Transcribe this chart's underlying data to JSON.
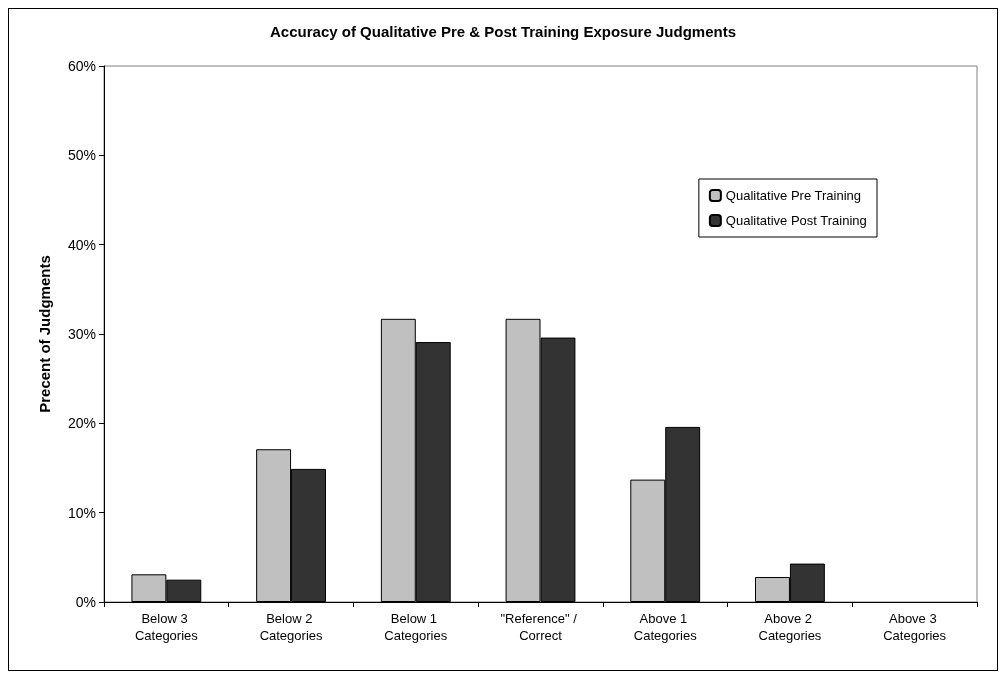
{
  "chart_data": {
    "type": "bar",
    "title": "Accuracy of Qualitative Pre & Post Training Exposure Judgments",
    "ylabel": "Precent of Judgments",
    "categories": [
      "Below 3 Categories",
      "Below 2 Categories",
      "Below 1 Categories",
      "\"Reference\" / Correct",
      "Above 1 Categories",
      "Above 2 Categories",
      "Above 3 Categories"
    ],
    "series": [
      {
        "name": "Qualitative Pre Training",
        "color": "#c0c0c0",
        "values": [
          3.1,
          17.1,
          31.7,
          31.7,
          13.7,
          2.8,
          0
        ]
      },
      {
        "name": "Qualitative Post Training",
        "color": "#333333",
        "values": [
          2.5,
          14.9,
          29.1,
          29.6,
          19.6,
          4.3,
          0
        ]
      }
    ],
    "ylim": [
      0,
      60
    ],
    "yticks": [
      {
        "value": 0,
        "label": "0%"
      },
      {
        "value": 10,
        "label": "10%"
      },
      {
        "value": 20,
        "label": "20%"
      },
      {
        "value": 30,
        "label": "30%"
      },
      {
        "value": 40,
        "label": "40%"
      },
      {
        "value": 50,
        "label": "50%"
      },
      {
        "value": 60,
        "label": "60%"
      }
    ],
    "grid": false,
    "legend": "top right"
  }
}
